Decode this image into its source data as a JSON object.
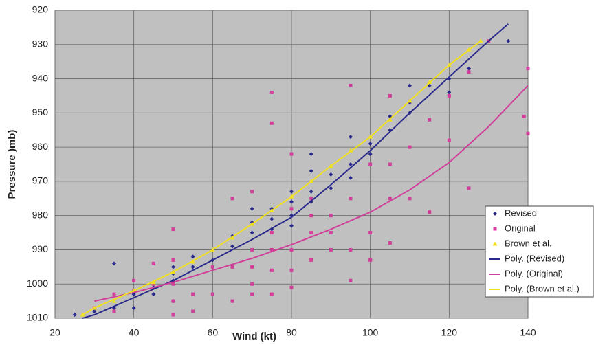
{
  "chart_data": {
    "type": "scatter",
    "xlabel": "Wind (kt)",
    "ylabel": "Pressure )mb)",
    "xlim": [
      20,
      140
    ],
    "xticks": [
      20,
      40,
      60,
      80,
      100,
      120,
      140
    ],
    "ylim": [
      1010,
      920
    ],
    "yticks": [
      920,
      930,
      940,
      950,
      960,
      970,
      980,
      990,
      1000,
      1010
    ],
    "grid": true,
    "legend": "lower right",
    "series": [
      {
        "name": "Revised",
        "color": "#2a2a8c",
        "marker": "diamond",
        "x": [
          25,
          30,
          35,
          35,
          40,
          40,
          45,
          45,
          50,
          50,
          50,
          50,
          55,
          55,
          60,
          60,
          65,
          65,
          70,
          70,
          70,
          75,
          75,
          75,
          80,
          80,
          80,
          80,
          85,
          85,
          85,
          85,
          90,
          90,
          95,
          95,
          95,
          100,
          100,
          105,
          105,
          110,
          110,
          110,
          115,
          120,
          120,
          125,
          135
        ],
        "values": [
          1009,
          1008,
          994,
          1007,
          1007,
          1003,
          1003,
          1001,
          995,
          997,
          999,
          1005,
          992,
          995,
          990,
          993,
          986,
          989,
          978,
          982,
          985,
          978,
          981,
          984,
          973,
          976,
          980,
          983,
          962,
          967,
          973,
          976,
          968,
          972,
          957,
          965,
          969,
          959,
          962,
          951,
          955,
          942,
          947,
          950,
          942,
          940,
          944,
          937,
          929
        ]
      },
      {
        "name": "Original",
        "color": "#d0409a",
        "marker": "square",
        "x": [
          30,
          35,
          35,
          40,
          40,
          45,
          45,
          50,
          50,
          50,
          50,
          50,
          55,
          55,
          60,
          60,
          65,
          65,
          65,
          70,
          70,
          70,
          70,
          70,
          75,
          75,
          75,
          75,
          75,
          75,
          80,
          80,
          80,
          80,
          80,
          85,
          85,
          85,
          85,
          90,
          90,
          90,
          95,
          95,
          95,
          95,
          100,
          100,
          100,
          105,
          105,
          105,
          105,
          110,
          110,
          115,
          115,
          120,
          120,
          125,
          125,
          130,
          140,
          140,
          139
        ],
        "values": [
          1007,
          1003,
          1008,
          999,
          1002,
          994,
          1000,
          984,
          993,
          1000,
          1005,
          1009,
          1003,
          1008,
          995,
          1003,
          975,
          995,
          1005,
          973,
          990,
          995,
          1000,
          1003,
          944,
          953,
          985,
          990,
          996,
          1003,
          962,
          978,
          990,
          996,
          1001,
          975,
          980,
          985,
          993,
          980,
          985,
          990,
          942,
          975,
          990,
          999,
          965,
          985,
          993,
          945,
          965,
          975,
          988,
          960,
          975,
          952,
          979,
          945,
          958,
          938,
          972,
          929,
          937,
          956,
          951
        ]
      },
      {
        "name": "Brown et al.",
        "color": "#f0e020",
        "marker": "triangle",
        "x": [
          27,
          30,
          35,
          40,
          45,
          50,
          55,
          60,
          65,
          70,
          75,
          80,
          85,
          90,
          95,
          100,
          105,
          110,
          115,
          120,
          125,
          128
        ],
        "values": [
          1009,
          1007,
          1005,
          1002,
          999.5,
          996.5,
          993.5,
          990,
          986.5,
          982.5,
          978.5,
          974.5,
          970,
          965.5,
          961,
          957,
          952,
          946.5,
          941,
          936,
          931.5,
          929
        ]
      },
      {
        "name": "Poly. (Revised)",
        "color": "#2a2a8c",
        "marker": "line",
        "x": [
          27,
          30,
          40,
          50,
          60,
          70,
          80,
          90,
          100,
          110,
          120,
          130,
          135
        ],
        "values": [
          1010,
          1009,
          1004,
          999,
          993,
          987,
          980.5,
          971,
          961,
          950,
          939.5,
          929,
          924
        ]
      },
      {
        "name": "Poly. (Original)",
        "color": "#d0409a",
        "marker": "line",
        "x": [
          30,
          40,
          50,
          60,
          70,
          80,
          90,
          100,
          110,
          120,
          130,
          140
        ],
        "values": [
          1005,
          1002.5,
          999.5,
          996,
          992.5,
          988.5,
          984,
          979,
          972.5,
          964.5,
          954,
          942
        ]
      },
      {
        "name": "Poly. (Brown et al.)",
        "color": "#f0e020",
        "marker": "line",
        "x": [
          27,
          30,
          40,
          50,
          60,
          70,
          80,
          90,
          100,
          110,
          120,
          128
        ],
        "values": [
          1009,
          1007,
          1002,
          996.5,
          990,
          982.5,
          974.5,
          965.5,
          957,
          946.5,
          936,
          929
        ]
      }
    ]
  }
}
